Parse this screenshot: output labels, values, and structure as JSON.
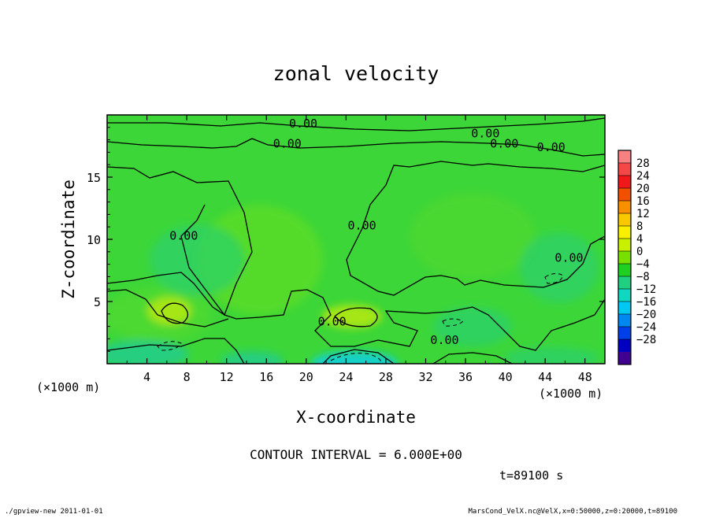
{
  "footer": {
    "left": "./gpview-new  2011-01-01",
    "right": "MarsCond_VelX.nc@VelX,x=0:50000,z=0:20000,t=89100"
  },
  "chart_data": {
    "type": "heatmap",
    "title": "zonal velocity",
    "xlabel": "X-coordinate",
    "ylabel": "Z-coordinate",
    "x_unit_left": "(×1000 m)",
    "x_unit_right": "(×1000 m)",
    "xlim": [
      0,
      50
    ],
    "ylim": [
      0,
      20
    ],
    "x_ticks": [
      4,
      8,
      12,
      16,
      20,
      24,
      28,
      32,
      36,
      40,
      44,
      48
    ],
    "y_ticks": [
      5,
      10,
      15
    ],
    "contour_interval_text": "CONTOUR INTERVAL = 6.000E+00",
    "time_text": "t=89100 s",
    "colorbar": {
      "levels": [
        32,
        28,
        24,
        20,
        16,
        12,
        8,
        4,
        0,
        -4,
        -8,
        -12,
        -16,
        -20,
        -24,
        -28,
        -32
      ],
      "labels": [
        "28",
        "24",
        "20",
        "16",
        "12",
        "8",
        "4",
        "0",
        "−4",
        "−8",
        "−12",
        "−16",
        "−20",
        "−24",
        "−28"
      ],
      "colors": [
        "#f78080",
        "#f44848",
        "#f01818",
        "#f05000",
        "#f89000",
        "#f8c800",
        "#f8f000",
        "#c8f000",
        "#78e000",
        "#20d020",
        "#20d080",
        "#10d8c0",
        "#00c8f0",
        "#0088f0",
        "#0040e8",
        "#0000c0",
        "#400090"
      ]
    },
    "contour_labels": [
      {
        "text": "0.00",
        "x": 19.7,
        "z": 19.3
      },
      {
        "text": "0.00",
        "x": 18.1,
        "z": 17.7
      },
      {
        "text": "0.00",
        "x": 38.0,
        "z": 18.5
      },
      {
        "text": "0.00",
        "x": 39.9,
        "z": 17.7
      },
      {
        "text": "0.00",
        "x": 44.6,
        "z": 17.4
      },
      {
        "text": "0.00",
        "x": 7.7,
        "z": 10.3
      },
      {
        "text": "0.00",
        "x": 25.6,
        "z": 11.1
      },
      {
        "text": "0.00",
        "x": 46.4,
        "z": 8.5
      },
      {
        "text": "0.00",
        "x": 22.6,
        "z": 3.4
      },
      {
        "text": "0.00",
        "x": 33.9,
        "z": 1.9
      }
    ]
  }
}
